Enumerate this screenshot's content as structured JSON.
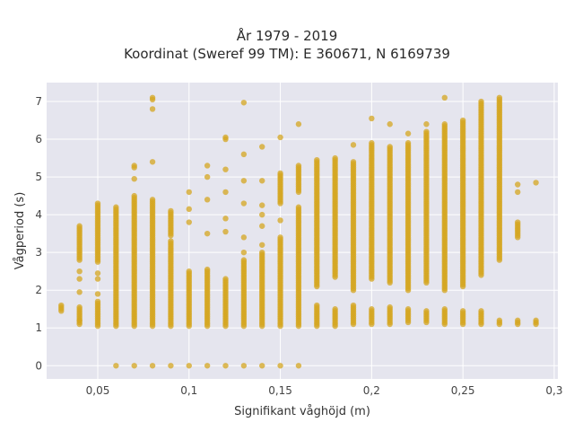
{
  "chart_data": {
    "type": "scatter",
    "title_lines": [
      "År 1979 - 2019",
      "Koordinat (Sweref 99 TM): E 360671, N 6169739"
    ],
    "xlabel": "Signifikant våghöjd (m)",
    "ylabel": "Vågperiod (s)",
    "xlim": [
      0.022,
      0.302
    ],
    "ylim": [
      -0.35,
      7.5
    ],
    "xticks": [
      0.05,
      0.1,
      0.15,
      0.2,
      0.25,
      0.3
    ],
    "xtick_labels": [
      "0,05",
      "0,1",
      "0,15",
      "0,2",
      "0,25",
      "0,3"
    ],
    "yticks": [
      0,
      1,
      2,
      3,
      4,
      5,
      6,
      7
    ],
    "ytick_labels": [
      "0",
      "1",
      "2",
      "3",
      "4",
      "5",
      "6",
      "7"
    ],
    "grid": true,
    "marker_color": "#D4A520",
    "plot_background": "#E5E5EE",
    "columns": [
      {
        "x": 0.03,
        "ranges": [
          [
            1.45,
            1.6
          ]
        ],
        "points": []
      },
      {
        "x": 0.04,
        "ranges": [
          [
            1.1,
            1.55
          ],
          [
            2.8,
            3.7
          ]
        ],
        "points": [
          1.2,
          1.95,
          2.3,
          2.5
        ]
      },
      {
        "x": 0.05,
        "ranges": [
          [
            1.05,
            1.7
          ],
          [
            2.75,
            4.3
          ]
        ],
        "points": [
          1.9,
          2.3,
          2.45
        ]
      },
      {
        "x": 0.06,
        "ranges": [
          [
            1.05,
            4.2
          ]
        ],
        "points": [
          0
        ]
      },
      {
        "x": 0.07,
        "ranges": [
          [
            1.05,
            4.5
          ]
        ],
        "points": [
          0,
          4.95,
          5.25,
          5.3
        ]
      },
      {
        "x": 0.08,
        "ranges": [
          [
            1.05,
            4.4
          ]
        ],
        "points": [
          0,
          5.4,
          6.8,
          7.05,
          7.1
        ]
      },
      {
        "x": 0.09,
        "ranges": [
          [
            1.05,
            3.3
          ],
          [
            3.45,
            4.1
          ]
        ],
        "points": [
          0
        ]
      },
      {
        "x": 0.1,
        "ranges": [
          [
            1.05,
            2.5
          ]
        ],
        "points": [
          0,
          3.8,
          4.15,
          4.6
        ]
      },
      {
        "x": 0.11,
        "ranges": [
          [
            1.05,
            2.55
          ]
        ],
        "points": [
          0,
          3.5,
          4.4,
          5.0,
          5.3
        ]
      },
      {
        "x": 0.12,
        "ranges": [
          [
            1.05,
            2.3
          ]
        ],
        "points": [
          0,
          3.55,
          3.9,
          4.6,
          5.2,
          6.0,
          6.05
        ]
      },
      {
        "x": 0.13,
        "ranges": [
          [
            1.05,
            2.8
          ]
        ],
        "points": [
          0,
          3.0,
          3.4,
          4.3,
          4.9,
          5.6,
          6.97
        ]
      },
      {
        "x": 0.14,
        "ranges": [
          [
            1.05,
            3.0
          ]
        ],
        "points": [
          0,
          3.2,
          3.7,
          4.0,
          4.25,
          4.9,
          5.8
        ]
      },
      {
        "x": 0.15,
        "ranges": [
          [
            1.05,
            3.4
          ],
          [
            4.3,
            5.1
          ]
        ],
        "points": [
          0,
          3.85,
          6.05
        ]
      },
      {
        "x": 0.16,
        "ranges": [
          [
            1.05,
            4.2
          ],
          [
            4.6,
            5.3
          ]
        ],
        "points": [
          0,
          6.4
        ]
      },
      {
        "x": 0.17,
        "ranges": [
          [
            1.05,
            1.6
          ],
          [
            2.1,
            5.45
          ]
        ],
        "points": []
      },
      {
        "x": 0.18,
        "ranges": [
          [
            1.05,
            1.5
          ],
          [
            2.35,
            5.5
          ]
        ],
        "points": []
      },
      {
        "x": 0.19,
        "ranges": [
          [
            1.1,
            1.6
          ],
          [
            2.0,
            5.4
          ]
        ],
        "points": [
          5.85
        ]
      },
      {
        "x": 0.2,
        "ranges": [
          [
            1.1,
            1.5
          ],
          [
            2.3,
            5.9
          ]
        ],
        "points": [
          6.55
        ]
      },
      {
        "x": 0.21,
        "ranges": [
          [
            1.1,
            1.55
          ],
          [
            2.2,
            5.8
          ]
        ],
        "points": [
          6.4
        ]
      },
      {
        "x": 0.22,
        "ranges": [
          [
            1.15,
            1.5
          ],
          [
            2.0,
            5.9
          ]
        ],
        "points": [
          6.15
        ]
      },
      {
        "x": 0.23,
        "ranges": [
          [
            1.15,
            1.45
          ],
          [
            2.2,
            6.2
          ]
        ],
        "points": [
          6.4
        ]
      },
      {
        "x": 0.24,
        "ranges": [
          [
            1.1,
            1.5
          ],
          [
            2.0,
            6.4
          ]
        ],
        "points": [
          7.1
        ]
      },
      {
        "x": 0.25,
        "ranges": [
          [
            1.1,
            1.45
          ],
          [
            2.1,
            6.5
          ]
        ],
        "points": []
      },
      {
        "x": 0.26,
        "ranges": [
          [
            1.1,
            1.45
          ],
          [
            2.4,
            7.0
          ]
        ],
        "points": []
      },
      {
        "x": 0.27,
        "ranges": [
          [
            1.1,
            1.2
          ],
          [
            2.8,
            7.1
          ]
        ],
        "points": []
      },
      {
        "x": 0.28,
        "ranges": [
          [
            1.1,
            1.2
          ],
          [
            3.4,
            3.8
          ]
        ],
        "points": [
          4.6,
          4.8
        ]
      },
      {
        "x": 0.29,
        "ranges": [
          [
            1.1,
            1.2
          ]
        ],
        "points": [
          4.85
        ]
      }
    ]
  }
}
